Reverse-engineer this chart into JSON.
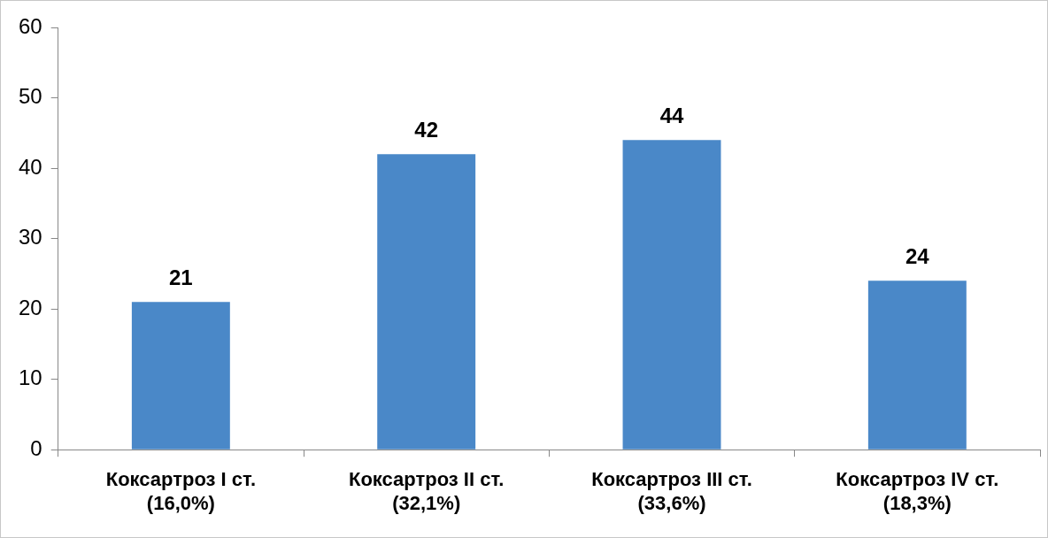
{
  "chart_data": {
    "type": "bar",
    "categories": [
      "Коксартроз I ст.\n(16,0%)",
      "Коксартроз II ст.\n(32,1%)",
      "Коксартроз III ст.\n(33,6%)",
      "Коксартроз IV ст.\n(18,3%)"
    ],
    "values": [
      21,
      42,
      44,
      24
    ],
    "color": "#4a88c8",
    "ylim": [
      0,
      60
    ],
    "yticks": [
      0,
      10,
      20,
      30,
      40,
      50,
      60
    ],
    "grid": false,
    "legend": false,
    "data_labels": true
  }
}
